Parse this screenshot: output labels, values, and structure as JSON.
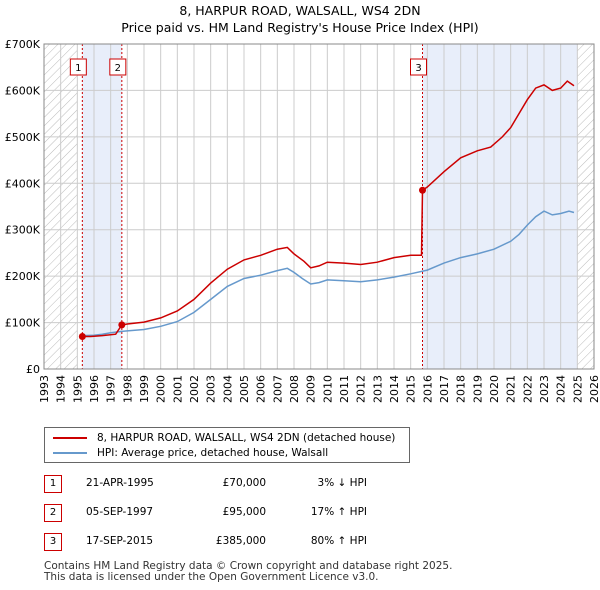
{
  "chart_data": {
    "type": "line",
    "title": "8, HARPUR ROAD, WALSALL, WS4 2DN",
    "subtitle": "Price paid vs. HM Land Registry's House Price Index (HPI)",
    "xlim": [
      1993,
      2026
    ],
    "ylim": [
      0,
      700000
    ],
    "x_ticks": [
      "1993",
      "1994",
      "1995",
      "1996",
      "1997",
      "1998",
      "1999",
      "2000",
      "2001",
      "2002",
      "2003",
      "2004",
      "2005",
      "2006",
      "2007",
      "2008",
      "2009",
      "2010",
      "2011",
      "2012",
      "2013",
      "2014",
      "2015",
      "2016",
      "2017",
      "2018",
      "2019",
      "2020",
      "2021",
      "2022",
      "2023",
      "2024",
      "2025",
      "2026"
    ],
    "y_ticks": [
      {
        "value": 0,
        "label": "£0"
      },
      {
        "value": 100000,
        "label": "£100K"
      },
      {
        "value": 200000,
        "label": "£200K"
      },
      {
        "value": 300000,
        "label": "£300K"
      },
      {
        "value": 400000,
        "label": "£400K"
      },
      {
        "value": 500000,
        "label": "£500K"
      },
      {
        "value": 600000,
        "label": "£600K"
      },
      {
        "value": 700000,
        "label": "£700K"
      }
    ],
    "grid": true,
    "hatched_ranges": [
      [
        1993,
        1995.0
      ],
      [
        2025.0,
        2026
      ]
    ],
    "shaded_ranges": [
      [
        1995.3,
        1997.67
      ],
      [
        2015.71,
        2025.0
      ]
    ],
    "legend": [
      {
        "label": "8, HARPUR ROAD, WALSALL, WS4 2DN (detached house)",
        "color": "#cc0000"
      },
      {
        "label": "HPI: Average price, detached house, Walsall",
        "color": "#6699cc"
      }
    ],
    "series": [
      {
        "name": "8, HARPUR ROAD, WALSALL, WS4 2DN (detached house)",
        "color": "#cc0000",
        "points": [
          [
            1995.3,
            70000
          ],
          [
            1995.8,
            70000
          ],
          [
            1996.5,
            72000
          ],
          [
            1997.3,
            75000
          ],
          [
            1997.67,
            95000
          ],
          [
            1998,
            97000
          ],
          [
            1999,
            101000
          ],
          [
            2000,
            110000
          ],
          [
            2001,
            125000
          ],
          [
            2002,
            150000
          ],
          [
            2003,
            185000
          ],
          [
            2004,
            215000
          ],
          [
            2005,
            235000
          ],
          [
            2006,
            245000
          ],
          [
            2007,
            258000
          ],
          [
            2007.6,
            262000
          ],
          [
            2008,
            248000
          ],
          [
            2008.6,
            232000
          ],
          [
            2009,
            218000
          ],
          [
            2009.5,
            222000
          ],
          [
            2010,
            230000
          ],
          [
            2011,
            228000
          ],
          [
            2012,
            225000
          ],
          [
            2013,
            230000
          ],
          [
            2014,
            240000
          ],
          [
            2015,
            245000
          ],
          [
            2015.65,
            245000
          ],
          [
            2015.71,
            385000
          ],
          [
            2016,
            392000
          ],
          [
            2017,
            425000
          ],
          [
            2018,
            455000
          ],
          [
            2019,
            470000
          ],
          [
            2019.8,
            478000
          ],
          [
            2020.5,
            500000
          ],
          [
            2021,
            520000
          ],
          [
            2021.5,
            550000
          ],
          [
            2022,
            580000
          ],
          [
            2022.5,
            605000
          ],
          [
            2023,
            612000
          ],
          [
            2023.5,
            600000
          ],
          [
            2024,
            605000
          ],
          [
            2024.4,
            620000
          ],
          [
            2024.8,
            610000
          ]
        ]
      },
      {
        "name": "HPI: Average price, detached house, Walsall",
        "color": "#6699cc",
        "points": [
          [
            1995.3,
            72000
          ],
          [
            1996,
            72500
          ],
          [
            1996.5,
            75000
          ],
          [
            1997,
            78000
          ],
          [
            1997.67,
            81000
          ],
          [
            1998,
            82000
          ],
          [
            1999,
            85000
          ],
          [
            2000,
            92000
          ],
          [
            2001,
            102000
          ],
          [
            2002,
            122000
          ],
          [
            2003,
            150000
          ],
          [
            2004,
            178000
          ],
          [
            2005,
            195000
          ],
          [
            2006,
            202000
          ],
          [
            2007,
            212000
          ],
          [
            2007.6,
            217000
          ],
          [
            2008,
            208000
          ],
          [
            2008.5,
            195000
          ],
          [
            2009,
            183000
          ],
          [
            2009.5,
            186000
          ],
          [
            2010,
            192000
          ],
          [
            2011,
            190000
          ],
          [
            2012,
            188000
          ],
          [
            2013,
            192000
          ],
          [
            2014,
            198000
          ],
          [
            2015,
            205000
          ],
          [
            2016,
            213000
          ],
          [
            2017,
            228000
          ],
          [
            2018,
            240000
          ],
          [
            2019,
            248000
          ],
          [
            2020,
            258000
          ],
          [
            2021,
            275000
          ],
          [
            2021.5,
            290000
          ],
          [
            2022,
            310000
          ],
          [
            2022.5,
            328000
          ],
          [
            2023,
            340000
          ],
          [
            2023.5,
            332000
          ],
          [
            2024,
            335000
          ],
          [
            2024.5,
            340000
          ],
          [
            2024.8,
            337000
          ]
        ]
      }
    ],
    "sale_markers": [
      {
        "id": "1",
        "x": 1995.3,
        "y": 70000
      },
      {
        "id": "2",
        "x": 1997.67,
        "y": 95000
      },
      {
        "id": "3",
        "x": 2015.71,
        "y": 385000
      }
    ]
  },
  "sales": [
    {
      "num": "1",
      "date": "21-APR-1995",
      "price": "£70,000",
      "hpi": "3% ↓ HPI"
    },
    {
      "num": "2",
      "date": "05-SEP-1997",
      "price": "£95,000",
      "hpi": "17% ↑ HPI"
    },
    {
      "num": "3",
      "date": "17-SEP-2015",
      "price": "£385,000",
      "hpi": "80% ↑ HPI"
    }
  ],
  "footer": {
    "line1": "Contains HM Land Registry data © Crown copyright and database right 2025.",
    "line2": "This data is licensed under the Open Government Licence v3.0."
  }
}
